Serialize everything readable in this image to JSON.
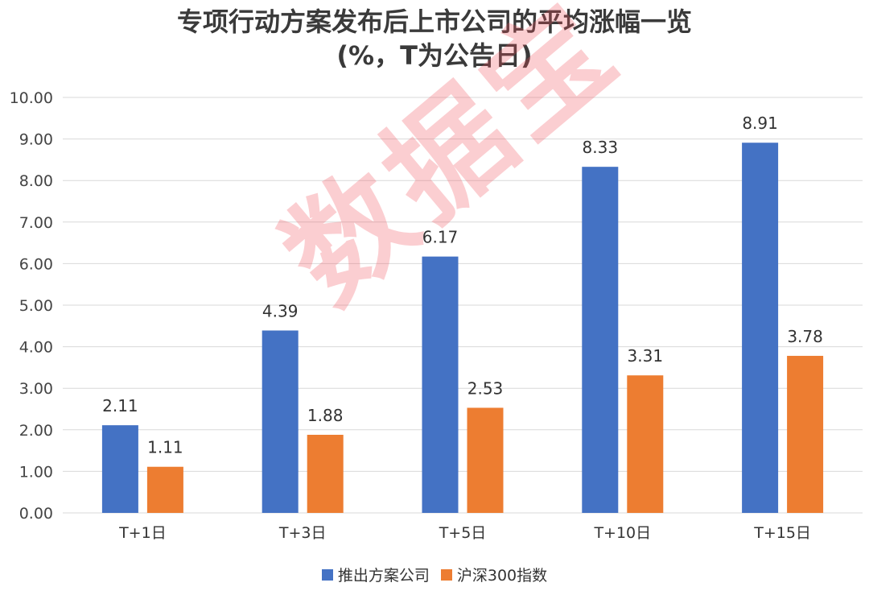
{
  "title_line1": "专项行动方案发布后上市公司的平均涨幅一览",
  "title_line2": "(%，T为公告日)",
  "watermark": "数据宝",
  "colors": {
    "series1": "#4472c4",
    "series2": "#ed7d31",
    "grid": "#d9d9d9"
  },
  "chart_data": {
    "type": "bar",
    "categories": [
      "T+1日",
      "T+3日",
      "T+5日",
      "T+10日",
      "T+15日"
    ],
    "series": [
      {
        "name": "推出方案公司",
        "values": [
          2.11,
          4.39,
          6.17,
          8.33,
          8.91
        ],
        "labels": [
          "2.11",
          "4.39",
          "6.17",
          "8.33",
          "8.91"
        ]
      },
      {
        "name": "沪深300指数",
        "values": [
          1.11,
          1.88,
          2.53,
          3.31,
          3.78
        ],
        "labels": [
          "1.11",
          "1.88",
          "2.53",
          "3.31",
          "3.78"
        ]
      }
    ],
    "ylim": [
      0,
      10
    ],
    "yticks": [
      "0.00",
      "1.00",
      "2.00",
      "3.00",
      "4.00",
      "5.00",
      "6.00",
      "7.00",
      "8.00",
      "9.00",
      "10.00"
    ],
    "grid": true,
    "legend": "bottom"
  }
}
